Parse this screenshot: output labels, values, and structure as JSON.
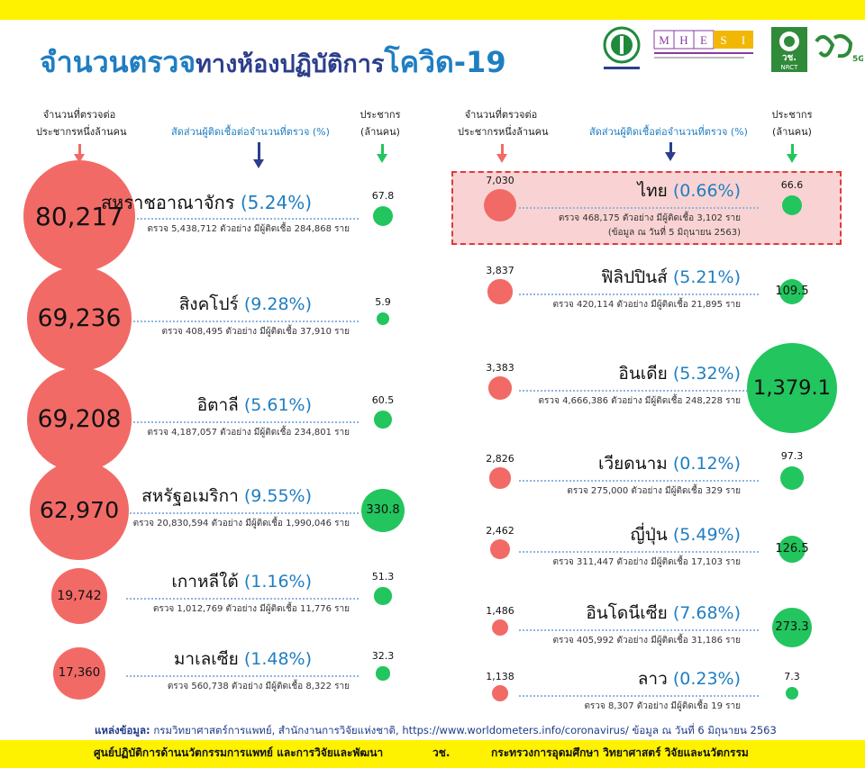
{
  "title": {
    "part1": "จำนวนตรวจ",
    "part2": "ทางห้องปฏิบัติการ",
    "part3": "โควิด-19"
  },
  "headers": {
    "tests_per_million": [
      "จำนวนที่ตรวจต่อ",
      "ประชากรหนึ่งล้านคน"
    ],
    "positive_ratio": "สัดส่วนผู้ติดเชื้อต่อจำนวนที่ตรวจ (%)",
    "population": [
      "ประชากร",
      "(ล้านคน)"
    ]
  },
  "logos": {
    "mhesi": "MHESI",
    "mhesi_letters": [
      "M",
      "H",
      "E",
      "S",
      "I"
    ],
    "nrct": "วช.",
    "nrct_sub": "NRCT",
    "five_g": "5G"
  },
  "colors": {
    "tests_circle": "#f26a66",
    "population_circle": "#22c55e",
    "ratio_text": "#1f7ec2",
    "highlight_border": "#e03a3a"
  },
  "chart_data": {
    "type": "bubble-table",
    "series": [
      {
        "name": "จำนวนที่ตรวจต่อประชากรหนึ่งล้านคน"
      },
      {
        "name": "สัดส่วนผู้ติดเชื้อต่อจำนวนที่ตรวจ (%)"
      },
      {
        "name": "ประชากร (ล้านคน)"
      }
    ],
    "left": [
      {
        "country": "สหราชอาณาจักร",
        "tests_per_million": 80217,
        "tests_label": "80,217",
        "positive_pct": "(5.24%)",
        "tests": "5,438,712",
        "infected": "284,868",
        "population": 67.8,
        "population_label": "67.8",
        "detail": "ตรวจ 5,438,712 ตัวอย่าง มีผู้ติดเชื้อ 284,868 ราย"
      },
      {
        "country": "สิงคโปร์",
        "tests_per_million": 69236,
        "tests_label": "69,236",
        "positive_pct": "(9.28%)",
        "tests": "408,495",
        "infected": "37,910",
        "population": 5.9,
        "population_label": "5.9",
        "detail": "ตรวจ 408,495 ตัวอย่าง มีผู้ติดเชื้อ 37,910 ราย"
      },
      {
        "country": "อิตาลี",
        "tests_per_million": 69208,
        "tests_label": "69,208",
        "positive_pct": "(5.61%)",
        "tests": "4,187,057",
        "infected": "234,801",
        "population": 60.5,
        "population_label": "60.5",
        "detail": "ตรวจ 4,187,057 ตัวอย่าง มีผู้ติดเชื้อ 234,801 ราย"
      },
      {
        "country": "สหรัฐอเมริกา",
        "tests_per_million": 62970,
        "tests_label": "62,970",
        "positive_pct": "(9.55%)",
        "tests": "20,830,594",
        "infected": "1,990,046",
        "population": 330.8,
        "population_label": "330.8",
        "detail": "ตรวจ 20,830,594 ตัวอย่าง มีผู้ติดเชื้อ 1,990,046 ราย"
      },
      {
        "country": "เกาหลีใต้",
        "tests_per_million": 19742,
        "tests_label": "19,742",
        "positive_pct": "(1.16%)",
        "tests": "1,012,769",
        "infected": "11,776",
        "population": 51.3,
        "population_label": "51.3",
        "detail": "ตรวจ 1,012,769 ตัวอย่าง มีผู้ติดเชื้อ 11,776 ราย"
      },
      {
        "country": "มาเลเซีย",
        "tests_per_million": 17360,
        "tests_label": "17,360",
        "positive_pct": "(1.48%)",
        "tests": "560,738",
        "infected": "8,322",
        "population": 32.3,
        "population_label": "32.3",
        "detail": "ตรวจ 560,738 ตัวอย่าง มีผู้ติดเชื้อ 8,322 ราย"
      }
    ],
    "right": [
      {
        "country": "ไทย",
        "tests_per_million": 7030,
        "tests_label": "7,030",
        "positive_pct": "(0.66%)",
        "tests": "468,175",
        "infected": "3,102",
        "population": 66.6,
        "population_label": "66.6",
        "detail": "ตรวจ 468,175 ตัวอย่าง มีผู้ติดเชื้อ 3,102 ราย",
        "note": "(ข้อมูล ณ วันที่ 5 มิถุนายน 2563)",
        "highlight": true
      },
      {
        "country": "ฟิลิปปินส์",
        "tests_per_million": 3837,
        "tests_label": "3,837",
        "positive_pct": "(5.21%)",
        "tests": "420,114",
        "infected": "21,895",
        "population": 109.5,
        "population_label": "109.5",
        "detail": "ตรวจ 420,114 ตัวอย่าง มีผู้ติดเชื้อ 21,895 ราย"
      },
      {
        "country": "อินเดีย",
        "tests_per_million": 3383,
        "tests_label": "3,383",
        "positive_pct": "(5.32%)",
        "tests": "4,666,386",
        "infected": "248,228",
        "population": 1379.1,
        "population_label": "1,379.1",
        "detail": "ตรวจ 4,666,386 ตัวอย่าง มีผู้ติดเชื้อ 248,228 ราย"
      },
      {
        "country": "เวียดนาม",
        "tests_per_million": 2826,
        "tests_label": "2,826",
        "positive_pct": "(0.12%)",
        "tests": "275,000",
        "infected": "329",
        "population": 97.3,
        "population_label": "97.3",
        "detail": "ตรวจ 275,000 ตัวอย่าง มีผู้ติดเชื้อ 329 ราย"
      },
      {
        "country": "ญี่ปุ่น",
        "tests_per_million": 2462,
        "tests_label": "2,462",
        "positive_pct": "(5.49%)",
        "tests": "311,447",
        "infected": "17,103",
        "population": 126.5,
        "population_label": "126.5",
        "detail": "ตรวจ 311,447 ตัวอย่าง มีผู้ติดเชื้อ 17,103 ราย"
      },
      {
        "country": "อินโดนีเซีย",
        "tests_per_million": 1486,
        "tests_label": "1,486",
        "positive_pct": "(7.68%)",
        "tests": "405,992",
        "infected": "31,186",
        "population": 273.3,
        "population_label": "273.3",
        "detail": "ตรวจ 405,992 ตัวอย่าง มีผู้ติดเชื้อ 31,186 ราย"
      },
      {
        "country": "ลาว",
        "tests_per_million": 1138,
        "tests_label": "1,138",
        "positive_pct": "(0.23%)",
        "tests": "8,307",
        "infected": "19",
        "population": 7.3,
        "population_label": "7.3",
        "detail": "ตรวจ 8,307 ตัวอย่าง มีผู้ติดเชื้อ 19 ราย"
      }
    ]
  },
  "source": {
    "label": "แหล่งข้อมูล:",
    "text": "กรมวิทยาศาสตร์การแพทย์, สำนักงานการวิจัยแห่งชาติ, https://www.worldometers.info/coronavirus/ ข้อมูล ณ วันที่ 6 มิถุนายน 2563"
  },
  "footer": {
    "left": "ศูนย์ปฏิบัติการด้านนวัตกรรมการแพทย์ และการวิจัยและพัฒนา",
    "middle": "วช.",
    "right": "กระทรวงการอุดมศึกษา วิทยาศาสตร์ วิจัยและนวัตกรรม"
  }
}
